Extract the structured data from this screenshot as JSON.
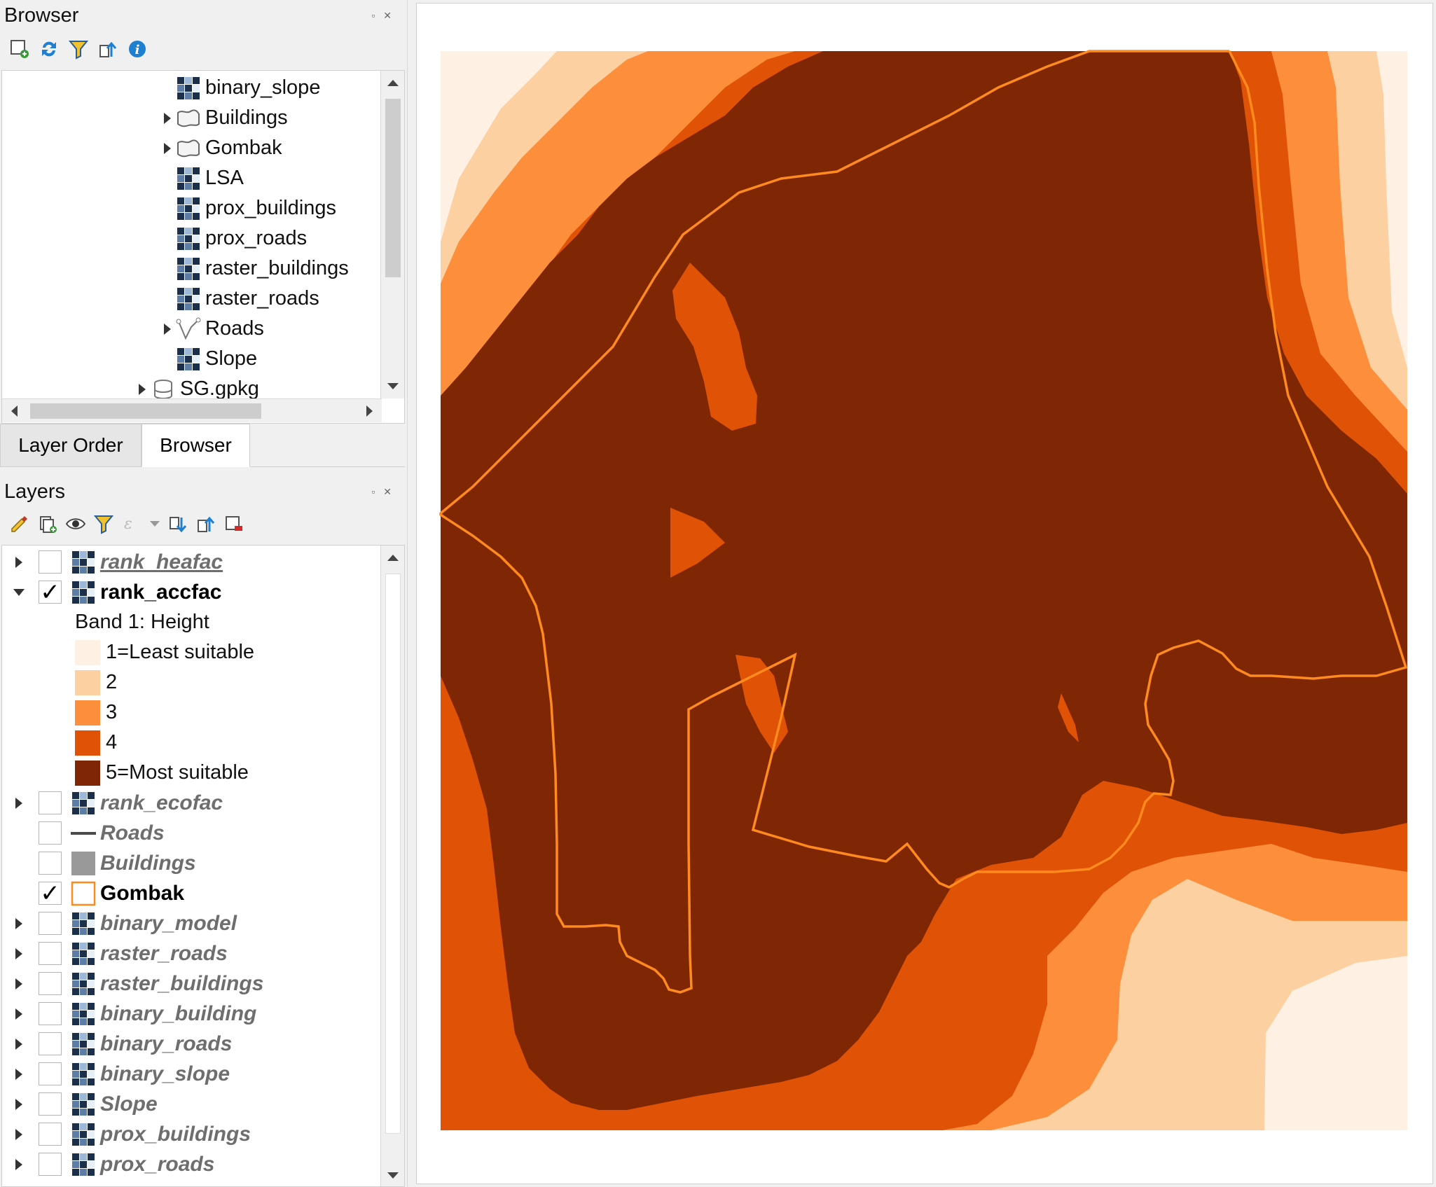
{
  "browser_panel": {
    "title": "Browser",
    "dock_buttons": "▫ ✕",
    "toolbar": [
      "add-layer-icon",
      "refresh-icon",
      "filter-icon",
      "collapse-all-icon",
      "info-icon"
    ],
    "items": [
      {
        "label": "binary_slope",
        "icon": "raster-icon",
        "expandable": false
      },
      {
        "label": "Buildings",
        "icon": "polygon-layer-icon",
        "expandable": true
      },
      {
        "label": "Gombak",
        "icon": "polygon-layer-icon",
        "expandable": true
      },
      {
        "label": "LSA",
        "icon": "raster-icon",
        "expandable": false
      },
      {
        "label": "prox_buildings",
        "icon": "raster-icon",
        "expandable": false
      },
      {
        "label": "prox_roads",
        "icon": "raster-icon",
        "expandable": false
      },
      {
        "label": "raster_buildings",
        "icon": "raster-icon",
        "expandable": false
      },
      {
        "label": "raster_roads",
        "icon": "raster-icon",
        "expandable": false
      },
      {
        "label": "Roads",
        "icon": "line-layer-icon",
        "expandable": true
      },
      {
        "label": "Slope",
        "icon": "raster-icon",
        "expandable": false
      },
      {
        "label": "SG.gpkg",
        "icon": "geopackage-icon",
        "expandable": true
      }
    ]
  },
  "tabs": [
    {
      "label": "Layer Order",
      "active": false
    },
    {
      "label": "Browser",
      "active": true
    }
  ],
  "layers_panel": {
    "title": "Layers",
    "dock_buttons": "▫ ✕",
    "toolbar": [
      "style-manager-icon",
      "add-group-icon",
      "visibility-icon",
      "filter-legend-icon",
      "expression-filter-icon",
      "expand-all-icon",
      "collapse-all-icon",
      "remove-layer-icon"
    ],
    "layers": [
      {
        "label": "rank_heafac",
        "checked": false,
        "expanded": false,
        "type": "raster",
        "style": "inactive-underline"
      },
      {
        "label": "rank_accfac",
        "checked": true,
        "expanded": true,
        "type": "raster",
        "style": "active"
      },
      {
        "label": "rank_ecofac",
        "checked": false,
        "expanded": false,
        "type": "raster",
        "style": "inactive"
      },
      {
        "label": "Roads",
        "checked": false,
        "expanded": null,
        "type": "line",
        "style": "inactive"
      },
      {
        "label": "Buildings",
        "checked": false,
        "expanded": null,
        "type": "polygon-fill",
        "style": "inactive"
      },
      {
        "label": "Gombak",
        "checked": true,
        "expanded": null,
        "type": "polygon-outline",
        "style": "active"
      },
      {
        "label": "binary_model",
        "checked": false,
        "expanded": false,
        "type": "raster",
        "style": "inactive"
      },
      {
        "label": "raster_roads",
        "checked": false,
        "expanded": false,
        "type": "raster",
        "style": "inactive"
      },
      {
        "label": "raster_buildings",
        "checked": false,
        "expanded": false,
        "type": "raster",
        "style": "inactive"
      },
      {
        "label": "binary_building",
        "checked": false,
        "expanded": false,
        "type": "raster",
        "style": "inactive"
      },
      {
        "label": "binary_roads",
        "checked": false,
        "expanded": false,
        "type": "raster",
        "style": "inactive"
      },
      {
        "label": "binary_slope",
        "checked": false,
        "expanded": false,
        "type": "raster",
        "style": "inactive"
      },
      {
        "label": "Slope",
        "checked": false,
        "expanded": false,
        "type": "raster",
        "style": "inactive"
      },
      {
        "label": "prox_buildings",
        "checked": false,
        "expanded": false,
        "type": "raster",
        "style": "inactive"
      },
      {
        "label": "prox_roads",
        "checked": false,
        "expanded": false,
        "type": "raster",
        "style": "inactive"
      }
    ],
    "legend": {
      "band_label": "Band 1: Height",
      "classes": [
        {
          "label": "1=Least suitable",
          "color": "#fff0e4"
        },
        {
          "label": "2",
          "color": "#fdd0a2"
        },
        {
          "label": "3",
          "color": "#fd8e3c"
        },
        {
          "label": "4",
          "color": "#e05206"
        },
        {
          "label": "5=Most suitable",
          "color": "#7f2704"
        }
      ]
    }
  },
  "map": {
    "boundary_color": "#ff8a1e"
  }
}
